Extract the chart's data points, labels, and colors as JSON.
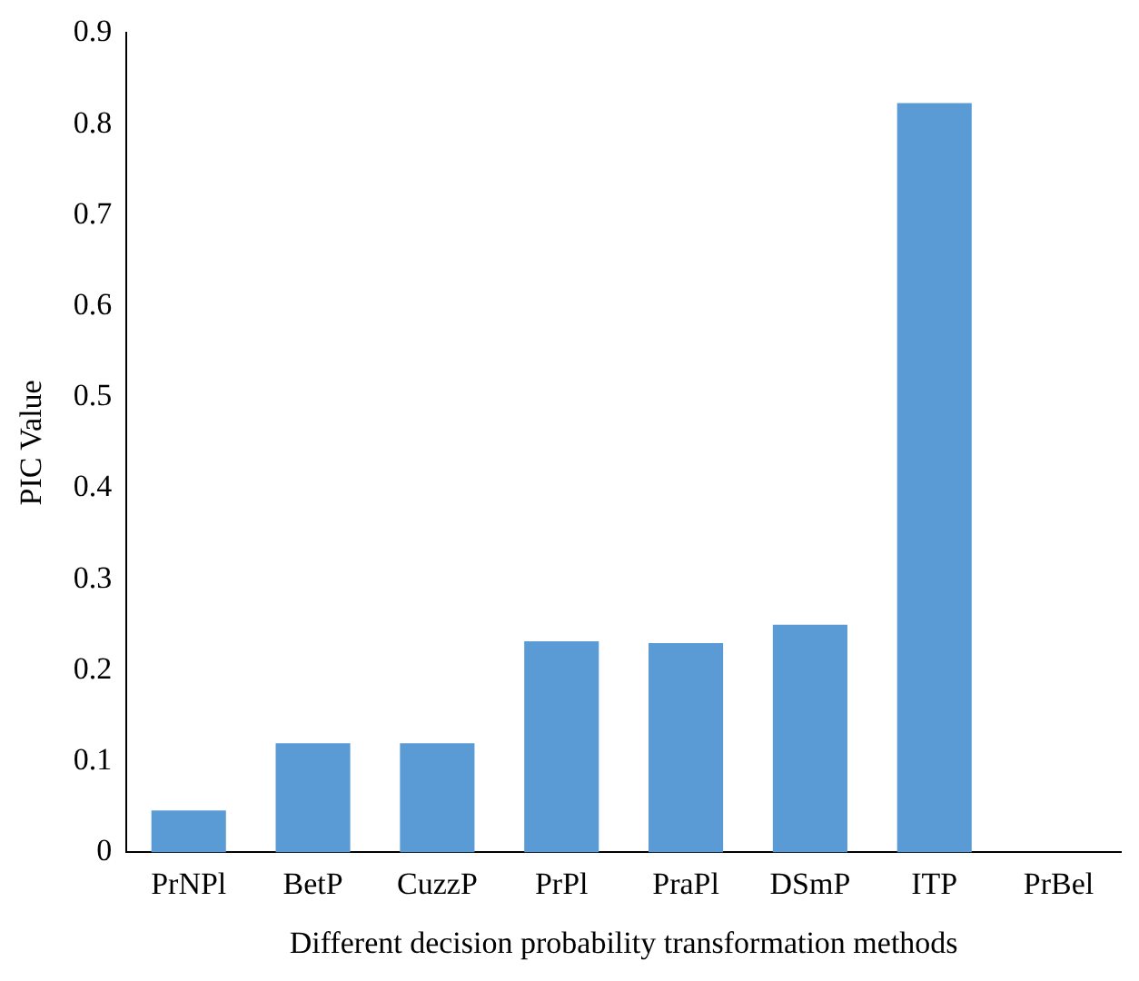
{
  "chart_data": {
    "type": "bar",
    "xlabel": "Different decision probability transformation methods",
    "ylabel": "PIC Value",
    "categories": [
      "PrNPl",
      "BetP",
      "CuzzP",
      "PrPl",
      "PraPl",
      "DSmP",
      "ITP",
      "PrBel"
    ],
    "values": [
      0.046,
      0.12,
      0.12,
      0.232,
      0.23,
      0.25,
      0.823,
      0
    ],
    "color": "#5b9bd5",
    "ylim": [
      0,
      0.9
    ],
    "yticks": [
      0,
      0.1,
      0.2,
      0.3,
      0.4,
      0.5,
      0.6,
      0.7,
      0.8,
      0.9
    ],
    "grid": false,
    "legend": false
  }
}
